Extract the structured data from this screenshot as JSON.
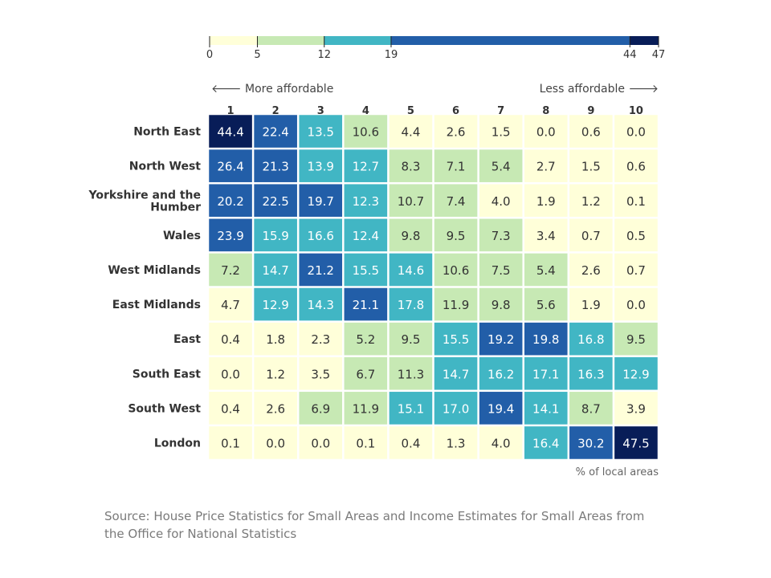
{
  "chart_data": {
    "type": "heatmap",
    "columns": [
      "1",
      "2",
      "3",
      "4",
      "5",
      "6",
      "7",
      "8",
      "9",
      "10"
    ],
    "rows": [
      "North East",
      "North West",
      "Yorkshire and the Humber",
      "Wales",
      "West Midlands",
      "East Midlands",
      "East",
      "South East",
      "South West",
      "London"
    ],
    "values": [
      [
        44.4,
        22.4,
        13.5,
        10.6,
        4.4,
        2.6,
        1.5,
        0.0,
        0.6,
        0.0
      ],
      [
        26.4,
        21.3,
        13.9,
        12.7,
        8.3,
        7.1,
        5.4,
        2.7,
        1.5,
        0.6
      ],
      [
        20.2,
        22.5,
        19.7,
        12.3,
        10.7,
        7.4,
        4.0,
        1.9,
        1.2,
        0.1
      ],
      [
        23.9,
        15.9,
        16.6,
        12.4,
        9.8,
        9.5,
        7.3,
        3.4,
        0.7,
        0.5
      ],
      [
        7.2,
        14.7,
        21.2,
        15.5,
        14.6,
        10.6,
        7.5,
        5.4,
        2.6,
        0.7
      ],
      [
        4.7,
        12.9,
        14.3,
        21.1,
        17.8,
        11.9,
        9.8,
        5.6,
        1.9,
        0.0
      ],
      [
        0.4,
        1.8,
        2.3,
        5.2,
        9.5,
        15.5,
        19.2,
        19.8,
        16.8,
        9.5
      ],
      [
        0.0,
        1.2,
        3.5,
        6.7,
        11.3,
        14.7,
        16.2,
        17.1,
        16.3,
        12.9
      ],
      [
        0.4,
        2.6,
        6.9,
        11.9,
        15.1,
        17.0,
        19.4,
        14.1,
        8.7,
        3.9
      ],
      [
        0.1,
        0.0,
        0.0,
        0.1,
        0.4,
        1.3,
        4.0,
        16.4,
        30.2,
        47.5
      ]
    ],
    "color_scale": {
      "breaks": [
        0,
        5,
        12,
        19,
        44,
        47
      ],
      "colors": [
        "#ffffd9",
        "#c7e9b4",
        "#41b6c4",
        "#225ea8",
        "#081d58"
      ]
    },
    "annotations": {
      "left": "More affordable",
      "right": "Less affordable",
      "left_arrow": "🡐",
      "right_arrow": "🡒",
      "unit": "% of local areas"
    }
  },
  "source": "Source: House Price Statistics for Small Areas and Income Estimates for Small Areas from the Office for National Statistics"
}
